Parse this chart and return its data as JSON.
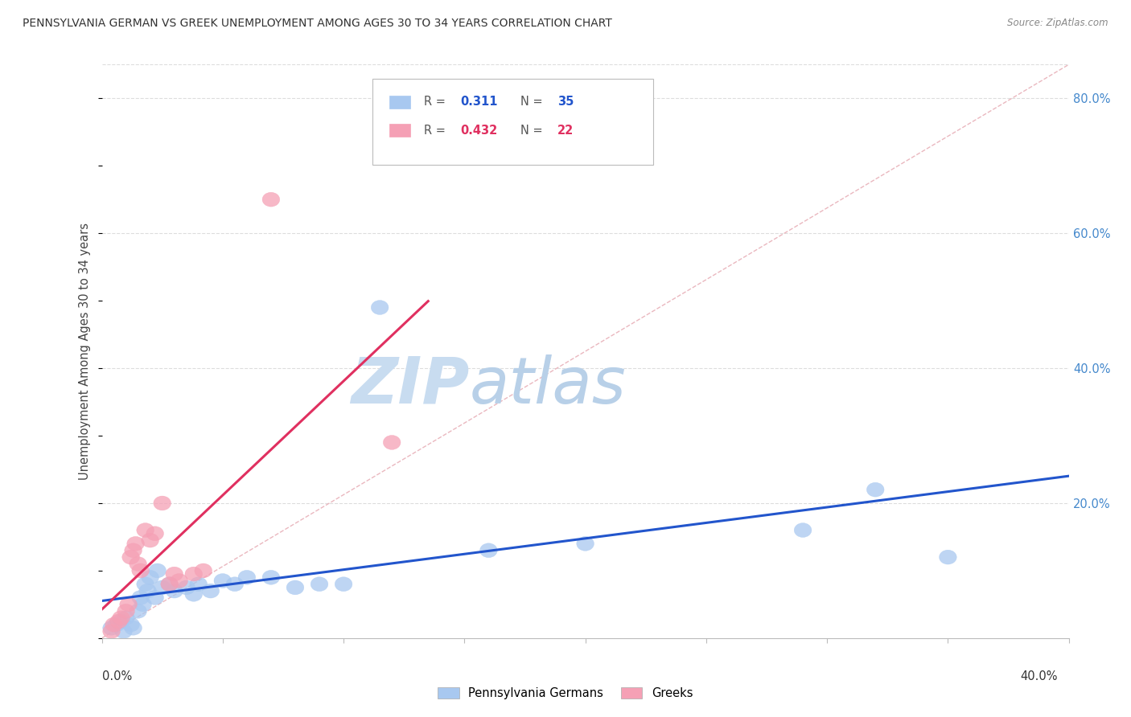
{
  "title": "PENNSYLVANIA GERMAN VS GREEK UNEMPLOYMENT AMONG AGES 30 TO 34 YEARS CORRELATION CHART",
  "source": "Source: ZipAtlas.com",
  "ylabel": "Unemployment Among Ages 30 to 34 years",
  "right_yticks": [
    "20.0%",
    "40.0%",
    "60.0%",
    "80.0%"
  ],
  "right_ytick_vals": [
    0.2,
    0.4,
    0.6,
    0.8
  ],
  "xmin": 0.0,
  "xmax": 0.4,
  "ymin": 0.0,
  "ymax": 0.85,
  "pa_german_R": "0.311",
  "pa_german_N": "35",
  "greek_R": "0.432",
  "greek_N": "22",
  "pa_german_scatter": [
    [
      0.004,
      0.015
    ],
    [
      0.006,
      0.02
    ],
    [
      0.008,
      0.025
    ],
    [
      0.009,
      0.01
    ],
    [
      0.01,
      0.03
    ],
    [
      0.012,
      0.02
    ],
    [
      0.013,
      0.015
    ],
    [
      0.015,
      0.04
    ],
    [
      0.016,
      0.06
    ],
    [
      0.017,
      0.05
    ],
    [
      0.018,
      0.08
    ],
    [
      0.019,
      0.07
    ],
    [
      0.02,
      0.09
    ],
    [
      0.022,
      0.06
    ],
    [
      0.023,
      0.1
    ],
    [
      0.025,
      0.075
    ],
    [
      0.028,
      0.08
    ],
    [
      0.03,
      0.07
    ],
    [
      0.035,
      0.075
    ],
    [
      0.038,
      0.065
    ],
    [
      0.04,
      0.08
    ],
    [
      0.045,
      0.07
    ],
    [
      0.05,
      0.085
    ],
    [
      0.055,
      0.08
    ],
    [
      0.06,
      0.09
    ],
    [
      0.07,
      0.09
    ],
    [
      0.08,
      0.075
    ],
    [
      0.09,
      0.08
    ],
    [
      0.1,
      0.08
    ],
    [
      0.115,
      0.49
    ],
    [
      0.16,
      0.13
    ],
    [
      0.2,
      0.14
    ],
    [
      0.29,
      0.16
    ],
    [
      0.32,
      0.22
    ],
    [
      0.35,
      0.12
    ]
  ],
  "greek_scatter": [
    [
      0.004,
      0.01
    ],
    [
      0.005,
      0.02
    ],
    [
      0.007,
      0.025
    ],
    [
      0.008,
      0.03
    ],
    [
      0.01,
      0.04
    ],
    [
      0.011,
      0.05
    ],
    [
      0.012,
      0.12
    ],
    [
      0.013,
      0.13
    ],
    [
      0.014,
      0.14
    ],
    [
      0.015,
      0.11
    ],
    [
      0.016,
      0.1
    ],
    [
      0.018,
      0.16
    ],
    [
      0.02,
      0.145
    ],
    [
      0.022,
      0.155
    ],
    [
      0.025,
      0.2
    ],
    [
      0.028,
      0.08
    ],
    [
      0.03,
      0.095
    ],
    [
      0.032,
      0.085
    ],
    [
      0.038,
      0.095
    ],
    [
      0.042,
      0.1
    ],
    [
      0.07,
      0.65
    ],
    [
      0.12,
      0.29
    ]
  ],
  "pa_german_color": "#A8C8F0",
  "greek_color": "#F5A0B5",
  "pa_german_line_color": "#2255CC",
  "greek_line_color": "#E03060",
  "diagonal_color": "#E8B0B8",
  "watermark_zip": "ZIP",
  "watermark_atlas": "atlas",
  "watermark_color_zip": "#C8DCF0",
  "watermark_color_atlas": "#B8D0E8",
  "background_color": "#FFFFFF",
  "grid_color": "#DDDDDD",
  "border_color": "#CCCCCC"
}
